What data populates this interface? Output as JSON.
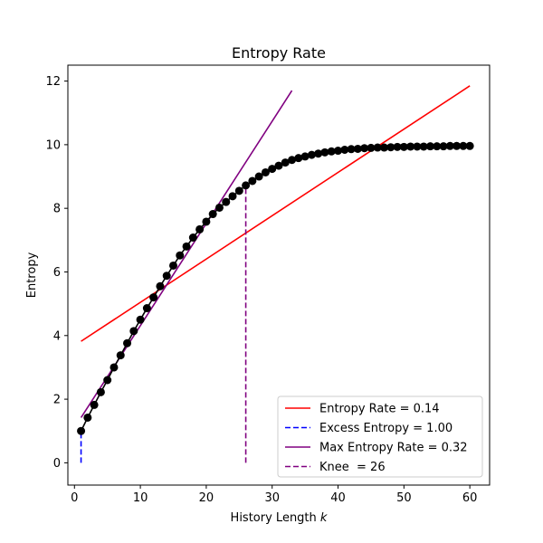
{
  "chart_data": {
    "type": "line",
    "title": "Entropy Rate",
    "xlabel": "History Length",
    "xlabel_var": "k",
    "ylabel": "Entropy",
    "xlim": [
      -1,
      63
    ],
    "ylim": [
      -0.7,
      12.5
    ],
    "xticks": [
      0,
      10,
      20,
      30,
      40,
      50,
      60
    ],
    "yticks": [
      0,
      2,
      4,
      6,
      8,
      10,
      12
    ],
    "grid": false,
    "legend_position": "lower-right",
    "series": [
      {
        "name": "",
        "kind": "line-markers",
        "color": "#000000",
        "x": [
          1,
          2,
          3,
          4,
          5,
          6,
          7,
          8,
          9,
          10,
          11,
          12,
          13,
          14,
          15,
          16,
          17,
          18,
          19,
          20,
          21,
          22,
          23,
          24,
          25,
          26,
          27,
          28,
          29,
          30,
          31,
          32,
          33,
          34,
          35,
          36,
          37,
          38,
          39,
          40,
          41,
          42,
          43,
          44,
          45,
          46,
          47,
          48,
          49,
          50,
          51,
          52,
          53,
          54,
          55,
          56,
          57,
          58,
          59,
          60
        ],
        "y": [
          1.0,
          1.42,
          1.82,
          2.22,
          2.6,
          3.0,
          3.38,
          3.76,
          4.14,
          4.5,
          4.86,
          5.2,
          5.55,
          5.88,
          6.2,
          6.52,
          6.8,
          7.08,
          7.34,
          7.58,
          7.82,
          8.02,
          8.2,
          8.38,
          8.55,
          8.72,
          8.86,
          9.0,
          9.13,
          9.24,
          9.34,
          9.44,
          9.52,
          9.58,
          9.63,
          9.68,
          9.72,
          9.76,
          9.79,
          9.81,
          9.84,
          9.86,
          9.87,
          9.89,
          9.9,
          9.91,
          9.91,
          9.92,
          9.93,
          9.93,
          9.94,
          9.94,
          9.94,
          9.95,
          9.95,
          9.95,
          9.96,
          9.96,
          9.96,
          9.96
        ]
      },
      {
        "name": "Entropy Rate = 0.14",
        "kind": "line",
        "color": "#ff0000",
        "x": [
          1,
          60
        ],
        "y": [
          3.82,
          11.85
        ]
      },
      {
        "name": "Excess Entropy = 1.00",
        "kind": "dashed",
        "color": "#0000ff",
        "x": [
          1,
          1
        ],
        "y": [
          0,
          1.0
        ]
      },
      {
        "name": "Max Entropy Rate = 0.32",
        "kind": "line",
        "color": "#800080",
        "x": [
          1,
          33
        ],
        "y": [
          1.42,
          11.7
        ]
      },
      {
        "name": "Knee  = 26",
        "kind": "dashed",
        "color": "#800080",
        "x": [
          26,
          26
        ],
        "y": [
          0,
          8.72
        ]
      }
    ]
  }
}
